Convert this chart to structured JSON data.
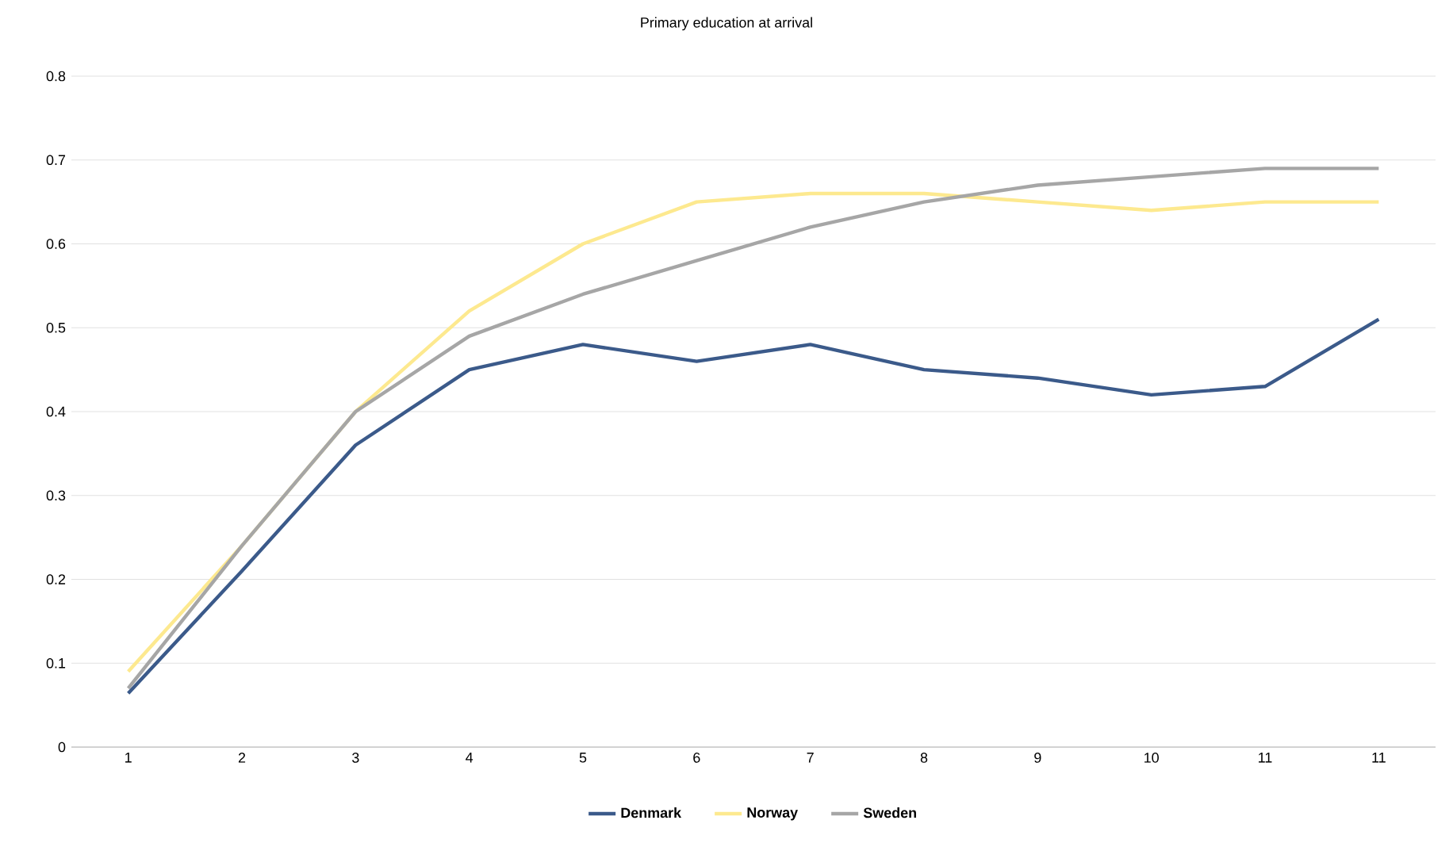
{
  "chart_data": {
    "type": "line",
    "title": "Primary education at arrival",
    "categories": [
      "1",
      "2",
      "3",
      "4",
      "5",
      "6",
      "7",
      "8",
      "9",
      "10",
      "11",
      "11"
    ],
    "series": [
      {
        "name": "Denmark",
        "color": "#3b5a8a",
        "values": [
          0.064,
          0.21,
          0.36,
          0.45,
          0.48,
          0.46,
          0.48,
          0.45,
          0.44,
          0.42,
          0.43,
          0.51
        ]
      },
      {
        "name": "Norway",
        "color": "#fde98f",
        "values": [
          0.09,
          0.24,
          0.4,
          0.52,
          0.6,
          0.65,
          0.66,
          0.66,
          0.65,
          0.64,
          0.65,
          0.65
        ]
      },
      {
        "name": "Sweden",
        "color": "#a6a6a6",
        "values": [
          0.07,
          0.24,
          0.4,
          0.49,
          0.54,
          0.58,
          0.62,
          0.65,
          0.67,
          0.68,
          0.69,
          0.69
        ]
      }
    ],
    "ylim": [
      0,
      0.8
    ],
    "yticks": [
      0,
      0.1,
      0.2,
      0.3,
      0.4,
      0.5,
      0.6,
      0.7,
      0.8
    ],
    "grid": "y",
    "legend": "bottom",
    "marker": "none",
    "line_style": "solid"
  }
}
